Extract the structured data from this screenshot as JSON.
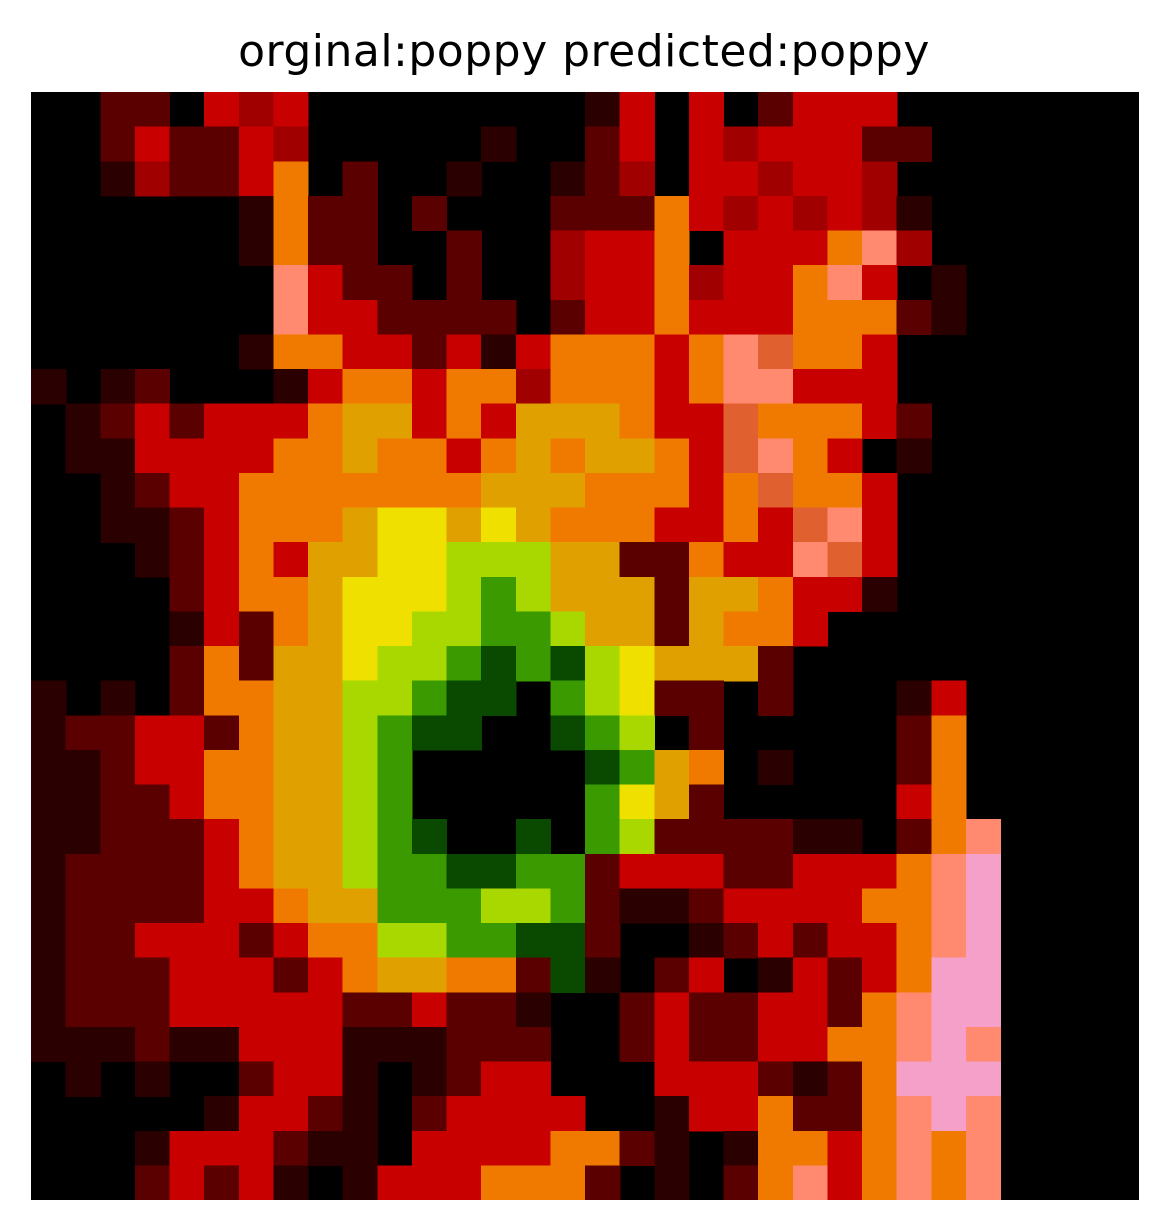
{
  "figure": {
    "title": "orginal:poppy predicted:poppy",
    "image_alt": "pixelated low-resolution poppy flower image"
  },
  "palette": {
    "black": "#000000",
    "dark_red": "#5a0000",
    "red": "#c80000",
    "bright_red": "#ff1a00",
    "orange": "#f07a00",
    "amber": "#e0a000",
    "yellow": "#f0e000",
    "lime": "#a8d800",
    "green": "#3a9a00",
    "dark_green": "#0a4a00",
    "salmon": "#ff8a70",
    "pink": "#f5a0c8"
  },
  "pixel_rows": [
    "..mm.RrR........dR.R.mRRR..",
    "..mRmmRr.....d..mR.RrRRRmm.",
    "..drmmRO.m..d..dmr.RRrRRr..",
    "......dOmm.m...mmmORrRrRrd.",
    "......dOmm..m..rRRO.RRROsr..",
    ".......sRmm.m..rRROrRROsR.d",
    ".......sRRmmmm.mRRORRROOOmd",
    "......dOORRmRdROOOROsSOOR..",
    "d.dm...dROOROOrOOOROssRRR..",
    ".dmRmRRROAARORAAAORRSOOORm.",
    ".ddRRRROOAOOROAOAAORSsOR.d.",
    "..dmRROOOOOOOAAAOOOROSOOR..",
    "..ddmROOOAYYAYAOOORRORSsR..",
    "...dmRORAAYYLLLAAmmORRsSR..",
    "....mROOAYYYLGLAAAmAAORRd..",
    "....dRmOAYYLLGGLAAmAOOR....",
    "....mOmAAYLLGgGgLYAAAm.....",
    "d.d.mOOAALLGgg.GLYmm.m...dR",
    "dmmRRmOAALGgg..gGL.m.....mO",
    "ddmRROOAALG.....gGAO.d...mO",
    "ddmmROOAALG.....GYAm.....RO",
    "ddmmmROAALGg..g.GLmmmmdd.mOs",
    "dmmmmROAALGGggGGmRRRmmRRROsp",
    "dmmmmRROAAGGGLLGmddmRRRROOsp",
    "dmmRRRmROOLLGGggm..dmRmRROsp",
    "dmmmRRRmROAAOOmgd.mR.dRmROpp",
    "dmmmRRRRRmmRmmd..mRmmRRmOspp",
    "dddmddRRRdddmmm..mRmmRROOsps",
    ".d.d..mRRd.dmRR...RRRmdmOppp",
    ".....dRRmd.mRRRR..dRROmmOsps",
    "...dRRRmdd.RRRROOmd.dOOROsOs",
    "...mRmRd.dRRROOOm.d.mOsROsOs"
  ]
}
